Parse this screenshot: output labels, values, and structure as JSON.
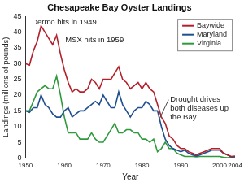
{
  "chart_data": {
    "type": "line",
    "title": "Chesapeake Bay Oyster Landings",
    "x_label": "Year",
    "y_label": "Landings (millions of pounds)",
    "annotations": [
      "Dermo hits in 1949",
      "MSX hits in 1959",
      "Drought drives both diseases up the Bay"
    ],
    "x": [
      1950,
      1951,
      1952,
      1953,
      1954,
      1955,
      1956,
      1957,
      1958,
      1959,
      1960,
      1961,
      1962,
      1963,
      1964,
      1965,
      1966,
      1967,
      1968,
      1969,
      1970,
      1971,
      1972,
      1973,
      1974,
      1975,
      1976,
      1977,
      1978,
      1979,
      1980,
      1981,
      1982,
      1983,
      1984,
      1985,
      1986,
      1987,
      1988,
      1989,
      1990,
      1991,
      1992,
      1993,
      1994,
      1995,
      1996,
      1997,
      1998,
      1999,
      2000,
      2001,
      2002,
      2003,
      2004
    ],
    "series": [
      {
        "name": "Baywide",
        "color": "#b3202a",
        "values": [
          30,
          29.5,
          34,
          37,
          42,
          40,
          38,
          36,
          39,
          33,
          28,
          24,
          21,
          22,
          21,
          21,
          22,
          25,
          24,
          22,
          25,
          25,
          25,
          27,
          29,
          25,
          24,
          22,
          23,
          24,
          22,
          24,
          22,
          21,
          17,
          13,
          11,
          7,
          6,
          4,
          3,
          3,
          2,
          1.5,
          1,
          1.5,
          2,
          2.5,
          3,
          3,
          3,
          1.5,
          1,
          0.5,
          0.6
        ]
      },
      {
        "name": "Maryland",
        "color": "#1f4f8f",
        "values": [
          15,
          14.5,
          16,
          16,
          20,
          17,
          16,
          14,
          13,
          13,
          15,
          16,
          13,
          14,
          15,
          15,
          16,
          17,
          18,
          17,
          20,
          18,
          16,
          16,
          21,
          17,
          15,
          13,
          15,
          16,
          16,
          18,
          17,
          15,
          15,
          10,
          6,
          4,
          3,
          2.5,
          2,
          2.5,
          1.5,
          1,
          0.6,
          1,
          1.5,
          2,
          2.5,
          2.5,
          2.5,
          1.5,
          1,
          0.3,
          0.4
        ]
      },
      {
        "name": "Virginia",
        "color": "#2f9a3c",
        "values": [
          15,
          15,
          18,
          21,
          22,
          23,
          22,
          22,
          26,
          20,
          13,
          8,
          8,
          8,
          6,
          6,
          6,
          8,
          6,
          5,
          5,
          7,
          9,
          11,
          8,
          8,
          9,
          9,
          8,
          8,
          6,
          6,
          5,
          6,
          2,
          3,
          5,
          3,
          3,
          1.5,
          1,
          0.5,
          0.5,
          0.5,
          0.4,
          0.5,
          0.5,
          0.5,
          0.5,
          0.5,
          0.5,
          0.2,
          0.1,
          0.2,
          0.2
        ]
      }
    ],
    "xlim": [
      1950,
      2004
    ],
    "xticks": [
      1950,
      1960,
      1970,
      1980,
      1990,
      2000,
      2004
    ],
    "ylim": [
      0,
      45
    ],
    "yticks": [
      0,
      5,
      10,
      15,
      20,
      25,
      30,
      35,
      40,
      45
    ],
    "grid": false,
    "legend": "top-right"
  }
}
